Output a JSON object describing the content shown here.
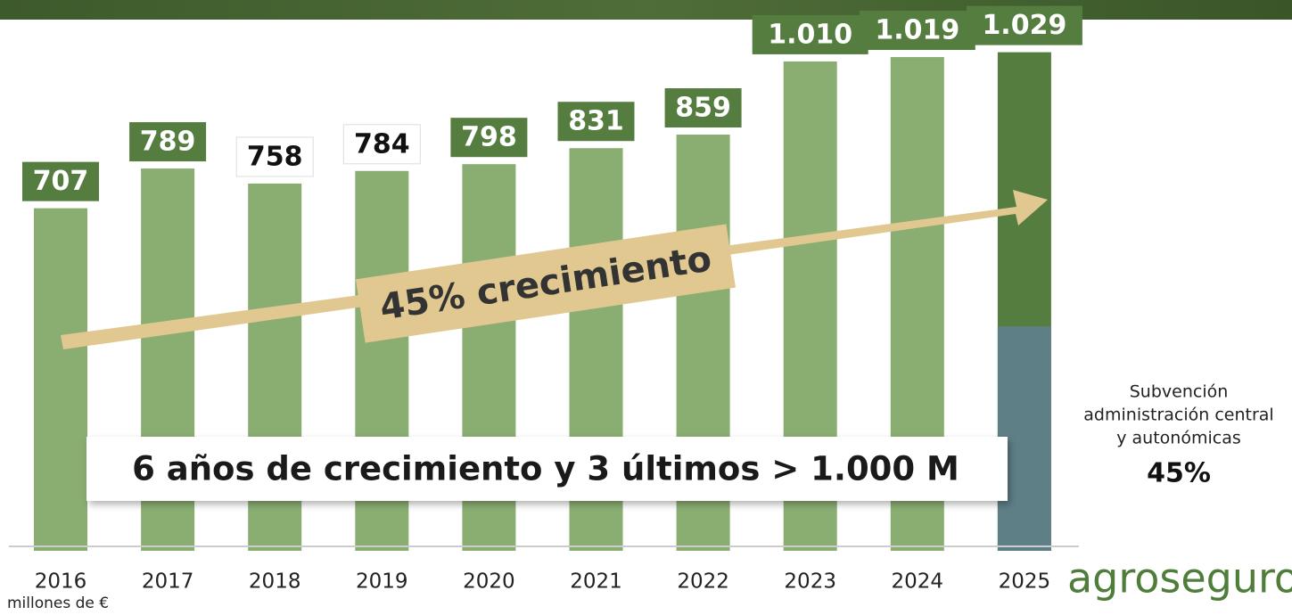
{
  "chart_data": {
    "type": "bar",
    "categories": [
      "2016",
      "2017",
      "2018",
      "2019",
      "2020",
      "2021",
      "2022",
      "2023",
      "2024",
      "2025"
    ],
    "values": [
      707,
      789,
      758,
      784,
      798,
      831,
      859,
      1010,
      1019,
      1029
    ],
    "value_labels": [
      "707",
      "789",
      "758",
      "784",
      "798",
      "831",
      "859",
      "1.010",
      "1.019",
      "1.029"
    ],
    "colors": [
      "#8aad72",
      "#8aad72",
      "#8aad72",
      "#8aad72",
      "#8aad72",
      "#8aad72",
      "#8aad72",
      "#8aad72",
      "#8aad72",
      "#567d40"
    ],
    "label_box_colors": [
      "#567d40",
      "#567d40",
      "#ffffff",
      "#ffffff",
      "#567d40",
      "#567d40",
      "#567d40",
      "#567d40",
      "#567d40",
      "#567d40"
    ],
    "ylim": [
      0,
      1100
    ],
    "subsidy": {
      "label_lines": [
        "Subvención",
        "administración central",
        "y autonómicas"
      ],
      "value": 45,
      "value_label": "45%",
      "color": "#5f7f87"
    },
    "growth_label": "45% crecimiento",
    "headline": "6 años de crecimiento y 3 últimos > 1.000 M",
    "unit": "millones de €"
  },
  "logo": "agroseguro"
}
